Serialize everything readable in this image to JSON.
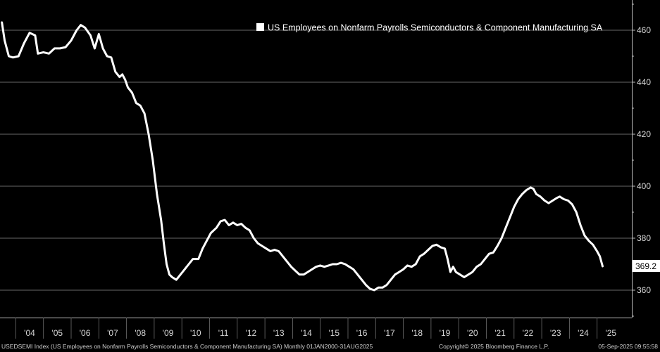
{
  "chart_data": {
    "type": "line",
    "title": "",
    "legend": {
      "label": "US Employees on Nonfarm Payrolls Semiconductors & Component Manufacturing SA",
      "position": "top-right"
    },
    "ylabel": "",
    "xlabel": "",
    "ylim": [
      350,
      470
    ],
    "yticks": [
      360,
      380,
      400,
      420,
      440,
      460
    ],
    "x_tick_labels": [
      "'04",
      "'05",
      "'06",
      "'07",
      "'08",
      "'09",
      "'10",
      "'11",
      "'12",
      "'13",
      "'14",
      "'15",
      "'16",
      "'17",
      "'18",
      "'19",
      "'20",
      "'21",
      "'22",
      "'23",
      "'24",
      "'25"
    ],
    "x_tick_years": [
      2004,
      2005,
      2006,
      2007,
      2008,
      2009,
      2010,
      2011,
      2012,
      2013,
      2014,
      2015,
      2016,
      2017,
      2018,
      2019,
      2020,
      2021,
      2022,
      2023,
      2024,
      2025
    ],
    "xlim": [
      2003.0,
      2025.8
    ],
    "series": [
      {
        "name": "USEDSEMI",
        "color": "#ffffff",
        "points": [
          [
            2003.0,
            463.0
          ],
          [
            2003.1,
            456.0
          ],
          [
            2003.25,
            450.0
          ],
          [
            2003.4,
            449.5
          ],
          [
            2003.6,
            450.0
          ],
          [
            2003.8,
            455.0
          ],
          [
            2004.0,
            459.0
          ],
          [
            2004.2,
            458.0
          ],
          [
            2004.3,
            451.0
          ],
          [
            2004.5,
            451.5
          ],
          [
            2004.7,
            451.0
          ],
          [
            2004.9,
            453.0
          ],
          [
            2005.1,
            453.0
          ],
          [
            2005.3,
            453.5
          ],
          [
            2005.5,
            456.0
          ],
          [
            2005.7,
            460.0
          ],
          [
            2005.85,
            462.0
          ],
          [
            2006.0,
            461.0
          ],
          [
            2006.2,
            458.0
          ],
          [
            2006.35,
            453.0
          ],
          [
            2006.5,
            458.5
          ],
          [
            2006.65,
            453.0
          ],
          [
            2006.8,
            450.0
          ],
          [
            2006.95,
            449.5
          ],
          [
            2007.1,
            444.0
          ],
          [
            2007.25,
            442.0
          ],
          [
            2007.35,
            443.0
          ],
          [
            2007.45,
            441.0
          ],
          [
            2007.55,
            438.0
          ],
          [
            2007.7,
            436.0
          ],
          [
            2007.85,
            432.0
          ],
          [
            2008.0,
            431.0
          ],
          [
            2008.15,
            428.0
          ],
          [
            2008.3,
            420.0
          ],
          [
            2008.45,
            410.0
          ],
          [
            2008.6,
            397.0
          ],
          [
            2008.75,
            387.0
          ],
          [
            2008.85,
            378.0
          ],
          [
            2008.95,
            370.0
          ],
          [
            2009.05,
            366.0
          ],
          [
            2009.15,
            365.0
          ],
          [
            2009.3,
            364.0
          ],
          [
            2009.45,
            366.0
          ],
          [
            2009.6,
            368.0
          ],
          [
            2009.75,
            370.0
          ],
          [
            2009.9,
            372.0
          ],
          [
            2010.1,
            372.0
          ],
          [
            2010.25,
            376.0
          ],
          [
            2010.4,
            379.0
          ],
          [
            2010.55,
            382.0
          ],
          [
            2010.75,
            384.0
          ],
          [
            2010.9,
            386.5
          ],
          [
            2011.05,
            387.0
          ],
          [
            2011.2,
            385.0
          ],
          [
            2011.35,
            386.0
          ],
          [
            2011.5,
            385.0
          ],
          [
            2011.65,
            385.5
          ],
          [
            2011.8,
            384.0
          ],
          [
            2011.95,
            383.0
          ],
          [
            2012.1,
            380.0
          ],
          [
            2012.25,
            378.0
          ],
          [
            2012.4,
            377.0
          ],
          [
            2012.55,
            376.0
          ],
          [
            2012.7,
            375.0
          ],
          [
            2012.85,
            375.5
          ],
          [
            2013.0,
            375.0
          ],
          [
            2013.15,
            373.0
          ],
          [
            2013.3,
            371.0
          ],
          [
            2013.45,
            369.0
          ],
          [
            2013.6,
            367.5
          ],
          [
            2013.75,
            366.0
          ],
          [
            2013.9,
            366.0
          ],
          [
            2014.05,
            367.0
          ],
          [
            2014.2,
            368.0
          ],
          [
            2014.35,
            369.0
          ],
          [
            2014.5,
            369.5
          ],
          [
            2014.65,
            369.0
          ],
          [
            2014.8,
            369.5
          ],
          [
            2014.95,
            370.0
          ],
          [
            2015.1,
            370.0
          ],
          [
            2015.25,
            370.5
          ],
          [
            2015.4,
            370.0
          ],
          [
            2015.55,
            369.0
          ],
          [
            2015.7,
            368.0
          ],
          [
            2015.85,
            366.0
          ],
          [
            2016.0,
            364.0
          ],
          [
            2016.15,
            362.0
          ],
          [
            2016.3,
            360.5
          ],
          [
            2016.45,
            360.0
          ],
          [
            2016.6,
            361.0
          ],
          [
            2016.75,
            361.0
          ],
          [
            2016.9,
            362.0
          ],
          [
            2017.05,
            364.0
          ],
          [
            2017.2,
            366.0
          ],
          [
            2017.35,
            367.0
          ],
          [
            2017.5,
            368.0
          ],
          [
            2017.65,
            369.5
          ],
          [
            2017.8,
            369.0
          ],
          [
            2017.95,
            370.0
          ],
          [
            2018.1,
            373.0
          ],
          [
            2018.25,
            374.0
          ],
          [
            2018.4,
            375.5
          ],
          [
            2018.55,
            377.0
          ],
          [
            2018.7,
            377.5
          ],
          [
            2018.85,
            376.5
          ],
          [
            2019.0,
            376.0
          ],
          [
            2019.1,
            372.0
          ],
          [
            2019.2,
            367.0
          ],
          [
            2019.3,
            369.0
          ],
          [
            2019.4,
            367.0
          ],
          [
            2019.55,
            366.0
          ],
          [
            2019.7,
            365.0
          ],
          [
            2019.85,
            366.0
          ],
          [
            2020.0,
            367.0
          ],
          [
            2020.15,
            369.0
          ],
          [
            2020.3,
            370.0
          ],
          [
            2020.45,
            372.0
          ],
          [
            2020.6,
            374.0
          ],
          [
            2020.75,
            374.5
          ],
          [
            2020.9,
            377.0
          ],
          [
            2021.05,
            380.0
          ],
          [
            2021.2,
            384.0
          ],
          [
            2021.35,
            388.0
          ],
          [
            2021.5,
            392.0
          ],
          [
            2021.65,
            395.0
          ],
          [
            2021.8,
            397.0
          ],
          [
            2021.95,
            398.5
          ],
          [
            2022.1,
            399.5
          ],
          [
            2022.2,
            399.0
          ],
          [
            2022.3,
            397.0
          ],
          [
            2022.45,
            396.0
          ],
          [
            2022.6,
            394.5
          ],
          [
            2022.75,
            393.5
          ],
          [
            2022.9,
            394.5
          ],
          [
            2023.05,
            395.5
          ],
          [
            2023.15,
            396.0
          ],
          [
            2023.3,
            395.0
          ],
          [
            2023.45,
            394.5
          ],
          [
            2023.6,
            393.0
          ],
          [
            2023.75,
            390.0
          ],
          [
            2023.9,
            385.0
          ],
          [
            2024.05,
            381.0
          ],
          [
            2024.2,
            379.0
          ],
          [
            2024.35,
            377.5
          ],
          [
            2024.5,
            375.0
          ],
          [
            2024.6,
            373.0
          ],
          [
            2024.7,
            369.2
          ]
        ]
      }
    ],
    "last_value_label": "369.2"
  },
  "footer": {
    "left": "USEDSEMI Index (US Employees on Nonfarm Payrolls Semiconductors & Component Manufacturing SA) Monthly 01JAN2000-31AUG2025",
    "center": "Copyright© 2025 Bloomberg Finance L.P.",
    "right": "05-Sep-2025 09:55:58"
  }
}
